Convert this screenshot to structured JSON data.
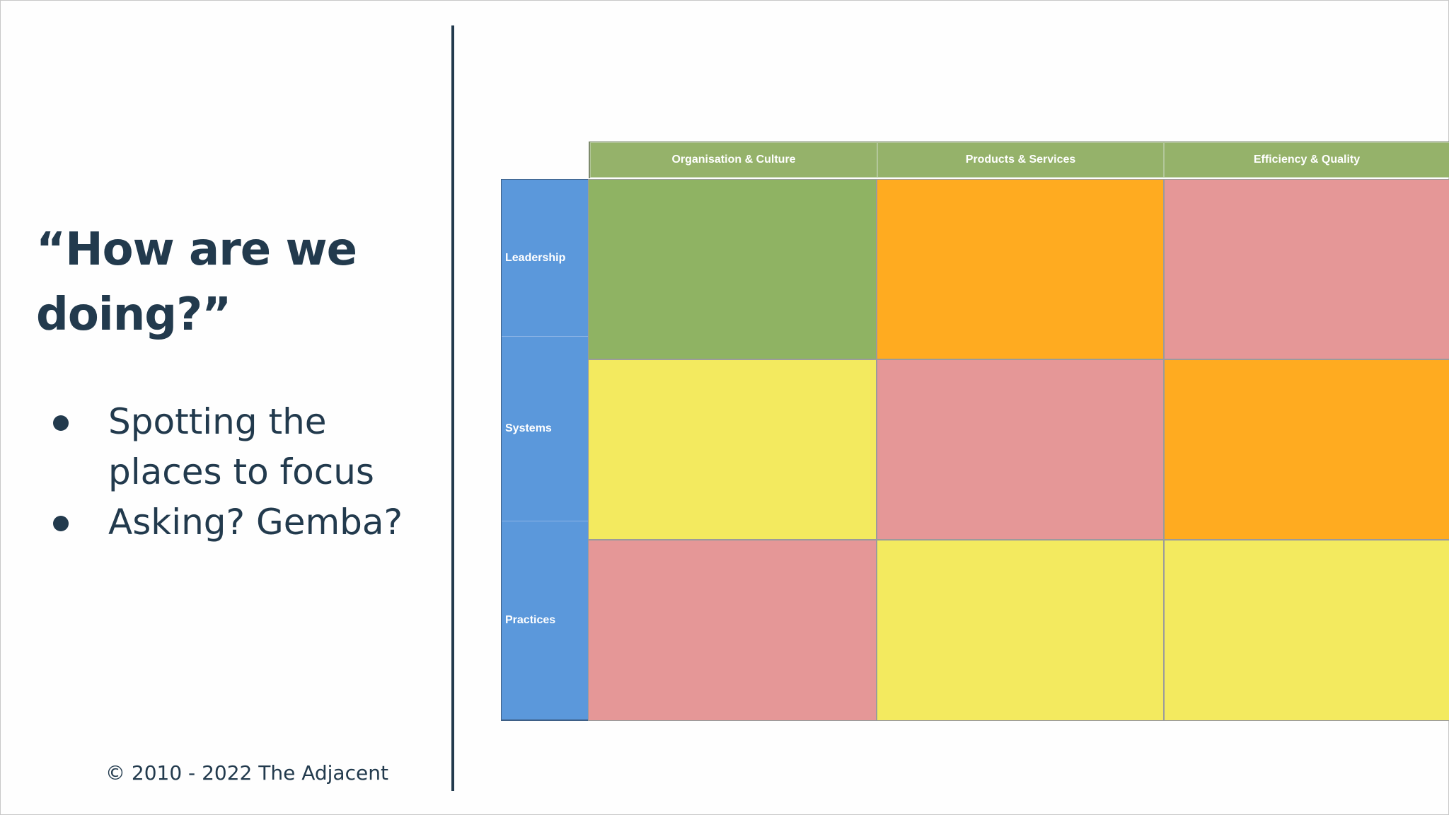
{
  "slide": {
    "title_line1": "“How are we",
    "title_line2": "doing?”",
    "bullets": [
      "Spotting the places to focus",
      "Asking? Gemba?"
    ],
    "copyright": "© 2010 - 2022 The Adjacent"
  },
  "matrix": {
    "columns": [
      "Organisation & Culture",
      "Products & Services",
      "Efficiency & Quality"
    ],
    "rows": [
      "Leadership",
      "Systems",
      "Practices"
    ],
    "status_colors": {
      "green": "#8fb363",
      "orange": "#ffab20",
      "red": "#e59797",
      "yellow": "#f3ea5f"
    },
    "cells": [
      [
        "green",
        "orange",
        "red"
      ],
      [
        "yellow",
        "red",
        "orange"
      ],
      [
        "red",
        "yellow",
        "yellow"
      ]
    ],
    "header_color": "#95b26a",
    "row_header_color": "#5b98db"
  }
}
